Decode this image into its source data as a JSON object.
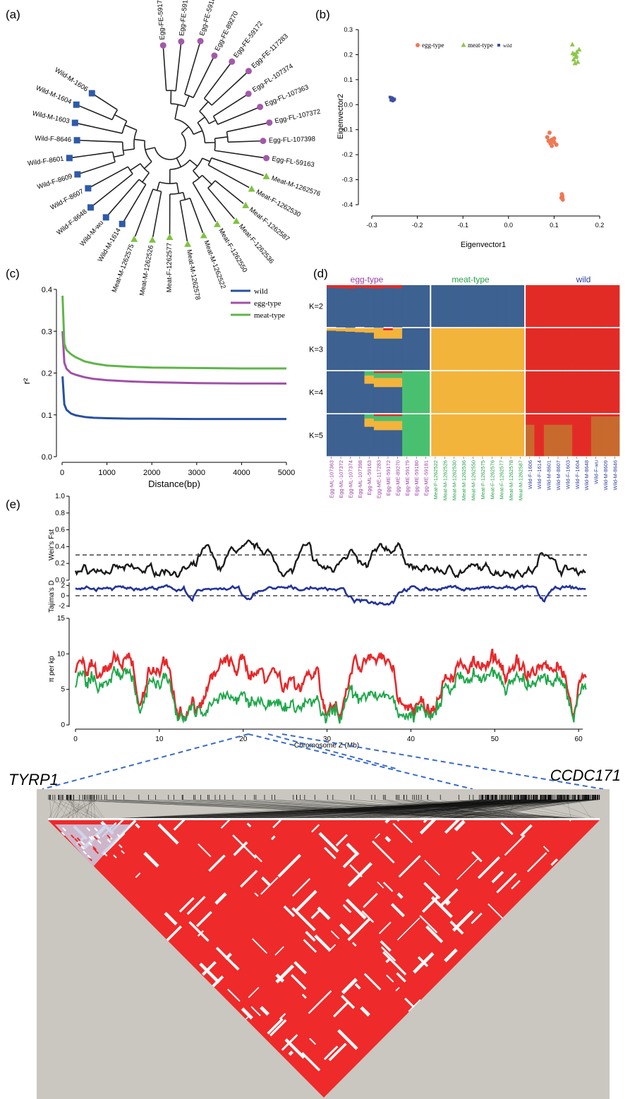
{
  "panels": {
    "a": {
      "label": "(a)",
      "leaves": [
        {
          "name": "Egg-FE-59179",
          "group": "egg"
        },
        {
          "name": "Egg-FE-59180",
          "group": "egg"
        },
        {
          "name": "Egg-FE-59181",
          "group": "egg"
        },
        {
          "name": "Egg-FE-89270",
          "group": "egg"
        },
        {
          "name": "Egg-FE-59172",
          "group": "egg"
        },
        {
          "name": "Egg-FE-117283",
          "group": "egg"
        },
        {
          "name": "Egg-FL-107374",
          "group": "egg"
        },
        {
          "name": "Egg-FL-107363",
          "group": "egg"
        },
        {
          "name": "Egg-FL-107372",
          "group": "egg"
        },
        {
          "name": "Egg-FL-107398",
          "group": "egg"
        },
        {
          "name": "Egg-FL-59163",
          "group": "egg"
        },
        {
          "name": "Meat-M-1262576",
          "group": "meat"
        },
        {
          "name": "Meat-F-1262530",
          "group": "meat"
        },
        {
          "name": "Meat-F-1262587",
          "group": "meat"
        },
        {
          "name": "Meat-F-1262536",
          "group": "meat"
        },
        {
          "name": "Meat-F-1262550",
          "group": "meat"
        },
        {
          "name": "Meat-M-1262522",
          "group": "meat"
        },
        {
          "name": "Meat-M-1262578",
          "group": "meat"
        },
        {
          "name": "Meat-F-1262577",
          "group": "meat"
        },
        {
          "name": "Meat-M-1262526",
          "group": "meat"
        },
        {
          "name": "Meat-M-1262575",
          "group": "meat"
        },
        {
          "name": "Wild-M-1614",
          "group": "wild"
        },
        {
          "name": "Wild-M-wu",
          "group": "wild"
        },
        {
          "name": "Wild-F-8648",
          "group": "wild"
        },
        {
          "name": "Wild-F-8607",
          "group": "wild"
        },
        {
          "name": "Wild-F-8609",
          "group": "wild"
        },
        {
          "name": "Wild-F-8601",
          "group": "wild"
        },
        {
          "name": "Wild-F-8646",
          "group": "wild"
        },
        {
          "name": "Wild-M-1603",
          "group": "wild"
        },
        {
          "name": "Wild-M-1604",
          "group": "wild"
        },
        {
          "name": "Wild-M-1606",
          "group": "wild"
        }
      ]
    },
    "b": {
      "label": "(b)",
      "chart_data": {
        "type": "scatter",
        "xlabel": "Eigenvector1",
        "ylabel": "Eigenvector2",
        "xlim": [
          -0.3,
          0.2
        ],
        "ylim": [
          -0.4,
          0.3
        ],
        "xticks": [
          "-0.3",
          "-0.2",
          "-0.1",
          "0.0",
          "0.1",
          "0.2"
        ],
        "yticks": [
          "0.3",
          "0.2",
          "0.1",
          "0.0",
          "-0.1",
          "-0.2",
          "-0.3",
          "-0.4"
        ],
        "legend_position": "top",
        "series": [
          {
            "name": "egg-type",
            "marker": "circle",
            "color": "#f07855",
            "x": [
              0.085,
              0.09,
              0.095,
              0.1,
              0.105,
              0.095,
              0.088,
              0.092,
              0.1,
              0.117,
              0.118,
              0.116,
              0.119,
              0.118
            ],
            "y": [
              -0.13,
              -0.112,
              -0.14,
              -0.15,
              -0.16,
              -0.165,
              -0.145,
              -0.155,
              -0.135,
              -0.358,
              -0.365,
              -0.372,
              -0.38,
              -0.37
            ]
          },
          {
            "name": "meat-type",
            "marker": "triangle",
            "color": "#8dc64a",
            "x": [
              0.14,
              0.145,
              0.15,
              0.155,
              0.148,
              0.143,
              0.152,
              0.146,
              0.141,
              0.149
            ],
            "y": [
              0.24,
              0.2,
              0.21,
              0.22,
              0.19,
              0.18,
              0.17,
              0.165,
              0.205,
              0.195
            ]
          },
          {
            "name": "wild",
            "marker": "square",
            "color": "#3a4fa3",
            "x": [
              -0.26,
              -0.255,
              -0.252,
              -0.258,
              -0.25,
              -0.254,
              -0.256,
              -0.253,
              -0.251,
              -0.257
            ],
            "y": [
              0.03,
              0.025,
              0.02,
              0.018,
              0.022,
              0.015,
              0.028,
              0.024,
              0.019,
              0.021
            ]
          }
        ]
      }
    },
    "c": {
      "label": "(c)",
      "chart_data": {
        "type": "line",
        "xlabel": "Distance(bp)",
        "ylabel": "r²",
        "xlim": [
          0,
          5000
        ],
        "ylim": [
          0,
          0.4
        ],
        "xticks": [
          "0",
          "1000",
          "2000",
          "3000",
          "4000",
          "5000"
        ],
        "yticks": [
          "0.0",
          "0.1",
          "0.2",
          "0.3",
          "0.4"
        ],
        "legend_position": "top-right",
        "x": [
          10,
          50,
          100,
          200,
          300,
          500,
          700,
          1000,
          1500,
          2000,
          3000,
          4000,
          5000
        ],
        "series": [
          {
            "name": "wild",
            "color": "#2850a0",
            "values": [
              0.192,
              0.125,
              0.112,
              0.103,
              0.099,
              0.095,
              0.093,
              0.092,
              0.091,
              0.091,
              0.09,
              0.09,
              0.09
            ]
          },
          {
            "name": "egg-type",
            "color": "#a050a8",
            "values": [
              0.3,
              0.225,
              0.21,
              0.2,
              0.196,
              0.19,
              0.186,
              0.183,
              0.18,
              0.178,
              0.176,
              0.175,
              0.175
            ]
          },
          {
            "name": "meat-type",
            "color": "#5fb548",
            "values": [
              0.385,
              0.27,
              0.255,
              0.245,
              0.238,
              0.228,
              0.223,
              0.218,
              0.215,
              0.213,
              0.212,
              0.211,
              0.211
            ]
          }
        ]
      }
    },
    "d": {
      "label": "(d)",
      "groups": [
        {
          "name": "egg-type",
          "color": "#9b3fa5"
        },
        {
          "name": "meat-type",
          "color": "#27a24a"
        },
        {
          "name": "wild",
          "color": "#2b3ea0"
        }
      ],
      "k_labels": [
        "K=2",
        "K=3",
        "K=4",
        "K=5"
      ],
      "cluster_colors": [
        "#3d6190",
        "#f3b43c",
        "#e32b26",
        "#49c070",
        "#c8692e"
      ],
      "samples": [
        {
          "name": "Egg-ML-107363",
          "group": "egg"
        },
        {
          "name": "Egg-ML-107372",
          "group": "egg"
        },
        {
          "name": "Egg-ML-107374",
          "group": "egg"
        },
        {
          "name": "Egg-ML-107398",
          "group": "egg"
        },
        {
          "name": "Egg-ML-59163",
          "group": "egg"
        },
        {
          "name": "Egg-ME-117283",
          "group": "egg"
        },
        {
          "name": "Egg-ME-59172",
          "group": "egg"
        },
        {
          "name": "Egg-ME-89270",
          "group": "egg"
        },
        {
          "name": "Egg-ME-59179",
          "group": "egg"
        },
        {
          "name": "Egg-ME-59180",
          "group": "egg"
        },
        {
          "name": "Egg-ME-59181",
          "group": "egg"
        },
        {
          "name": "Meat-F-1262522",
          "group": "meat"
        },
        {
          "name": "Meat-M-1262526",
          "group": "meat"
        },
        {
          "name": "Meat-M-1262530",
          "group": "meat"
        },
        {
          "name": "Meat-M-1262536",
          "group": "meat"
        },
        {
          "name": "Meat-M-1262550",
          "group": "meat"
        },
        {
          "name": "Meat-F-1262575",
          "group": "meat"
        },
        {
          "name": "Meat-F-1262576",
          "group": "meat"
        },
        {
          "name": "Meat-F-1262577",
          "group": "meat"
        },
        {
          "name": "Meat-M-1262578",
          "group": "meat"
        },
        {
          "name": "Meat-M-1262587",
          "group": "meat"
        },
        {
          "name": "Wild-F-1606",
          "group": "wild"
        },
        {
          "name": "Wild-F-1614",
          "group": "wild"
        },
        {
          "name": "Wild-M-8601",
          "group": "wild"
        },
        {
          "name": "Wild-M-8607",
          "group": "wild"
        },
        {
          "name": "Wild-F-1603",
          "group": "wild"
        },
        {
          "name": "Wild-F-1604",
          "group": "wild"
        },
        {
          "name": "Wild-M-8648",
          "group": "wild"
        },
        {
          "name": "Wild-F-wu",
          "group": "wild"
        },
        {
          "name": "Wild-M-8609",
          "group": "wild"
        },
        {
          "name": "Wild-M-8646",
          "group": "wild"
        }
      ]
    },
    "e": {
      "label": "(e)",
      "chart_data": [
        {
          "type": "line",
          "ylabel": "Weir's Fst",
          "yticks": [
            "0.0",
            "0.2",
            "0.4",
            "0.6",
            "0.8",
            "1.0"
          ],
          "ylim": [
            0,
            1
          ],
          "threshold": 0.3,
          "color": "#1a1a1a"
        },
        {
          "type": "line",
          "ylabel": "Tajima's D",
          "yticks": [
            "-2",
            "0",
            "2"
          ],
          "ylim": [
            -3,
            3
          ],
          "threshold": 0,
          "color": "#23339a"
        },
        {
          "type": "line",
          "ylabel": "π per kp",
          "yticks": [
            "0",
            "5",
            "10",
            "15"
          ],
          "ylim": [
            0,
            15
          ],
          "series": [
            {
              "color": "#e8282a"
            },
            {
              "color": "#1ea84a"
            }
          ]
        }
      ],
      "xlabel": "Chromosome Z (Mb)",
      "xticks": [
        "0",
        "10",
        "20",
        "30",
        "40",
        "50",
        "60"
      ],
      "xlim": [
        0,
        61
      ]
    },
    "ld": {
      "gene_left": "TYRP1",
      "gene_right": "CCDC171"
    }
  },
  "colors": {
    "egg": "#a25aa8",
    "meat": "#7fc241",
    "wild": "#2f5aa8",
    "ld_red": "#ee2a2a",
    "ld_bg": "#cac7c0"
  }
}
